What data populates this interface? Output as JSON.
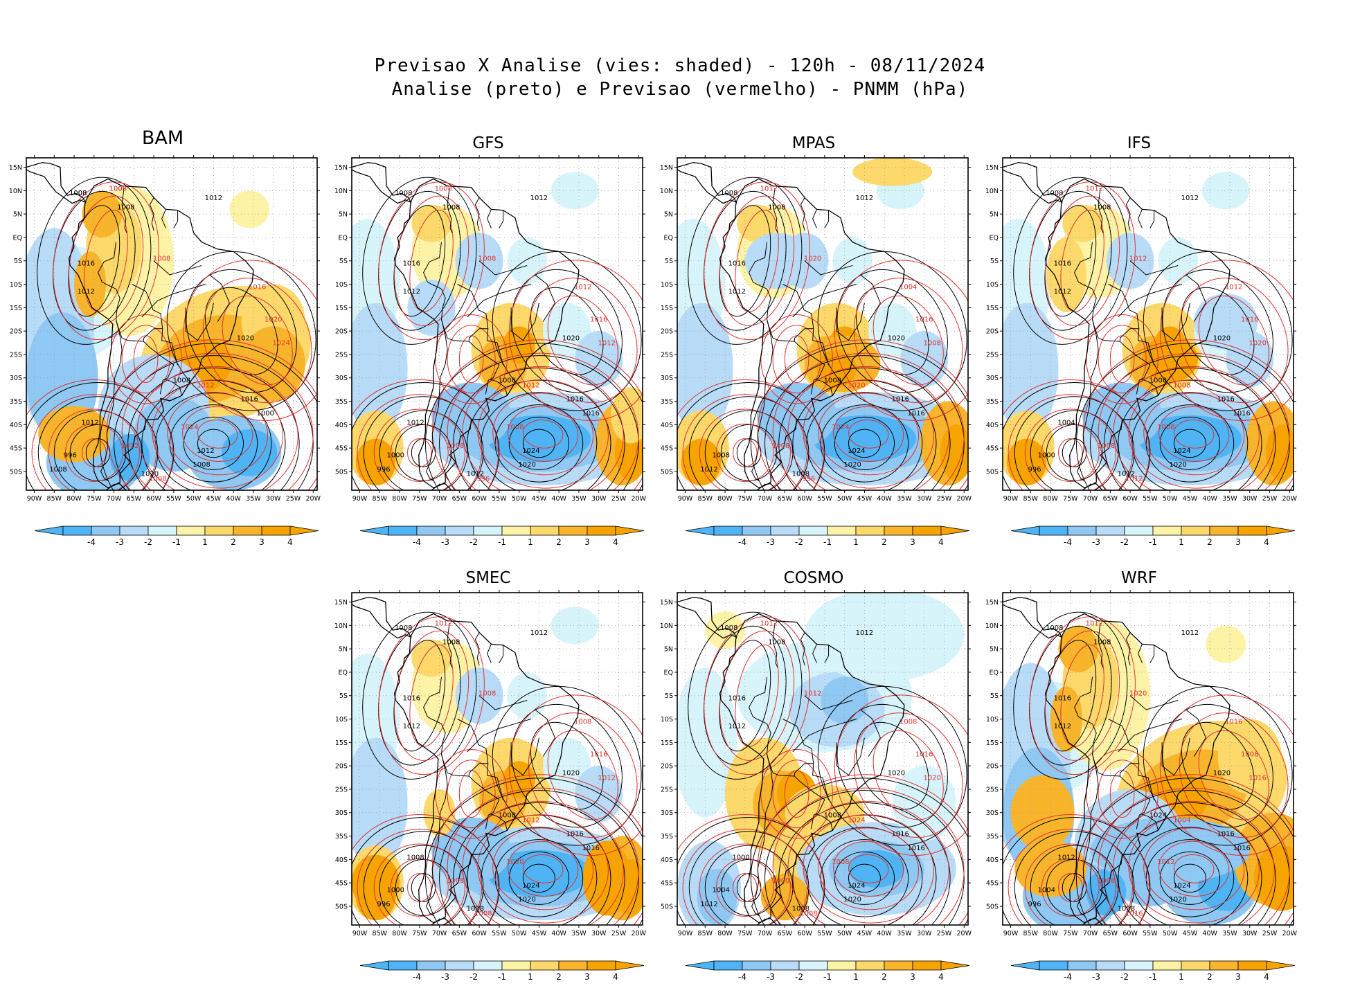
{
  "figure": {
    "title_line1": "Previsao X Analise (vies: shaded) - 120h - 08/11/2024",
    "title_line2": "Analise (preto) e Previsao (vermelho) - PNMM (hPa)"
  },
  "axes": {
    "lat_labels": [
      "15N",
      "10N",
      "5N",
      "EQ",
      "5S",
      "10S",
      "15S",
      "20S",
      "25S",
      "30S",
      "35S",
      "40S",
      "45S",
      "50S"
    ],
    "lon_labels": [
      "90W",
      "85W",
      "80W",
      "75W",
      "70W",
      "65W",
      "60W",
      "55W",
      "50W",
      "45W",
      "40W",
      "35W",
      "30W",
      "25W",
      "20W"
    ]
  },
  "colorbar": {
    "tick_labels": [
      "-4",
      "-3",
      "-2",
      "-1",
      "1",
      "2",
      "3",
      "4"
    ],
    "colors": [
      "#4fb4f5",
      "#8ec8f3",
      "#b8dcf7",
      "#d8f4fb",
      "#ffffff",
      "#fdf3a6",
      "#fcd96a",
      "#f8b52c",
      "#f7a400"
    ]
  },
  "colors": {
    "analysis_contour": "#000000",
    "forecast_contour": "#e03030",
    "coastline": "#000000",
    "grid": "#9a9a9a"
  },
  "panels": [
    {
      "model": "BAM",
      "bias": "warm_south",
      "black_labels": [
        "1008",
        "1012",
        "1008",
        "1016",
        "1012",
        "1020",
        "1008",
        "1016",
        "1012",
        "1008",
        "1000",
        "996",
        "1008",
        "1020",
        "1012",
        "1008"
      ],
      "red_labels": [
        "1008",
        "1016",
        "1020",
        "1024",
        "1024",
        "1008",
        "1012",
        "1008",
        "1012",
        "1008"
      ]
    },
    {
      "model": "GFS",
      "bias": "cool_south",
      "black_labels": [
        "1008",
        "1012",
        "1008",
        "1016",
        "1012",
        "1020",
        "1008",
        "1016",
        "1024",
        "1020",
        "1016",
        "1000",
        "996",
        "1012",
        "1012"
      ],
      "red_labels": [
        "1008",
        "1012",
        "1016",
        "1012",
        "1008",
        "1008",
        "1012",
        "996",
        "1008"
      ]
    },
    {
      "model": "MPAS",
      "bias": "cool_south",
      "black_labels": [
        "1008",
        "1012",
        "1008",
        "1016",
        "1012",
        "1020",
        "1008",
        "1016",
        "1024",
        "1020",
        "1016",
        "1008",
        "1012",
        "1008"
      ],
      "red_labels": [
        "1012",
        "1004",
        "1016",
        "1008",
        "1024",
        "1020",
        "1020",
        "996",
        "1008"
      ]
    },
    {
      "model": "IFS",
      "bias": "cool_south",
      "black_labels": [
        "1008",
        "1012",
        "1008",
        "1016",
        "1012",
        "1020",
        "1008",
        "1016",
        "1024",
        "1020",
        "1016",
        "1000",
        "996",
        "1012",
        "1004"
      ],
      "red_labels": [
        "1012",
        "1012",
        "1016",
        "1020",
        "1008",
        "1012",
        "1008",
        "1012",
        "1008"
      ]
    },
    {
      "model": "SMEC",
      "bias": "cool_south",
      "black_labels": [
        "1008",
        "1012",
        "1008",
        "1016",
        "1012",
        "1020",
        "1008",
        "1016",
        "1024",
        "1020",
        "1016",
        "1000",
        "996",
        "1008",
        "1008"
      ],
      "red_labels": [
        "1012",
        "1008",
        "1016",
        "1012",
        "1020",
        "1008",
        "1012",
        "1008",
        "1008"
      ]
    },
    {
      "model": "COSMO",
      "bias": "warm_central",
      "black_labels": [
        "1008",
        "1012",
        "1008",
        "1016",
        "1012",
        "1020",
        "1008",
        "1016",
        "1024",
        "1020",
        "1016",
        "1004",
        "1012",
        "1008",
        "1000"
      ],
      "red_labels": [
        "1012",
        "1008",
        "1016",
        "1020",
        "1008",
        "1012",
        "1024",
        "1008",
        "1000"
      ]
    },
    {
      "model": "WRF",
      "bias": "warm_south",
      "black_labels": [
        "1008",
        "1012",
        "1008",
        "1016",
        "1012",
        "1020",
        "1024",
        "1016",
        "1024",
        "1020",
        "1016",
        "1004",
        "996",
        "1008",
        "1012"
      ],
      "red_labels": [
        "1012",
        "1016",
        "1008",
        "1016",
        "1012",
        "1020",
        "1004",
        "1016",
        "1008"
      ]
    }
  ]
}
